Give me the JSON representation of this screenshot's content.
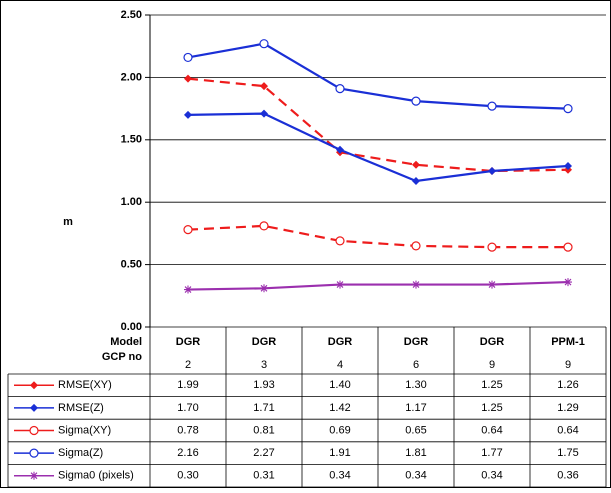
{
  "chart_data": {
    "type": "line",
    "ylabel": "m",
    "ylim": [
      0,
      2.5
    ],
    "yticks": [
      {
        "value": 0,
        "label": "0.00"
      },
      {
        "value": 0.5,
        "label": "0.50"
      },
      {
        "value": 1,
        "label": "1.00"
      },
      {
        "value": 1.5,
        "label": "1.50"
      },
      {
        "value": 2,
        "label": "2.00"
      },
      {
        "value": 2.5,
        "label": "2.50"
      }
    ],
    "grid": true,
    "category_title": "Model",
    "categories": [
      "DGR",
      "DGR",
      "DGR",
      "DGR",
      "DGR",
      "PPM-1"
    ],
    "gcp_title": "GCP no",
    "gcp_no": [
      2,
      3,
      4,
      6,
      9,
      9
    ],
    "series": [
      {
        "name": "RMSE(XY)",
        "color": "#ee1c1c",
        "dash": true,
        "marker": "diamond",
        "values": [
          1.99,
          1.93,
          1.4,
          1.3,
          1.25,
          1.26
        ],
        "value_labels": [
          "1.99",
          "1.93",
          "1.40",
          "1.30",
          "1.25",
          "1.26"
        ]
      },
      {
        "name": "RMSE(Z)",
        "color": "#1a2fd6",
        "dash": false,
        "marker": "diamond",
        "values": [
          1.7,
          1.71,
          1.42,
          1.17,
          1.25,
          1.29
        ],
        "value_labels": [
          "1.70",
          "1.71",
          "1.42",
          "1.17",
          "1.25",
          "1.29"
        ]
      },
      {
        "name": "Sigma(XY)",
        "color": "#ee1c1c",
        "dash": true,
        "marker": "circle",
        "values": [
          0.78,
          0.81,
          0.69,
          0.65,
          0.64,
          0.64
        ],
        "value_labels": [
          "0.78",
          "0.81",
          "0.69",
          "0.65",
          "0.64",
          "0.64"
        ]
      },
      {
        "name": "Sigma(Z)",
        "color": "#1a2fd6",
        "dash": false,
        "marker": "circle",
        "values": [
          2.16,
          2.27,
          1.91,
          1.81,
          1.77,
          1.75
        ],
        "value_labels": [
          "2.16",
          "2.27",
          "1.91",
          "1.81",
          "1.77",
          "1.75"
        ]
      },
      {
        "name": "Sigma0 (pixels)",
        "color": "#9b2fae",
        "dash": false,
        "marker": "star",
        "values": [
          0.3,
          0.31,
          0.34,
          0.34,
          0.34,
          0.36
        ],
        "value_labels": [
          "0.30",
          "0.31",
          "0.34",
          "0.34",
          "0.34",
          "0.36"
        ]
      }
    ]
  }
}
